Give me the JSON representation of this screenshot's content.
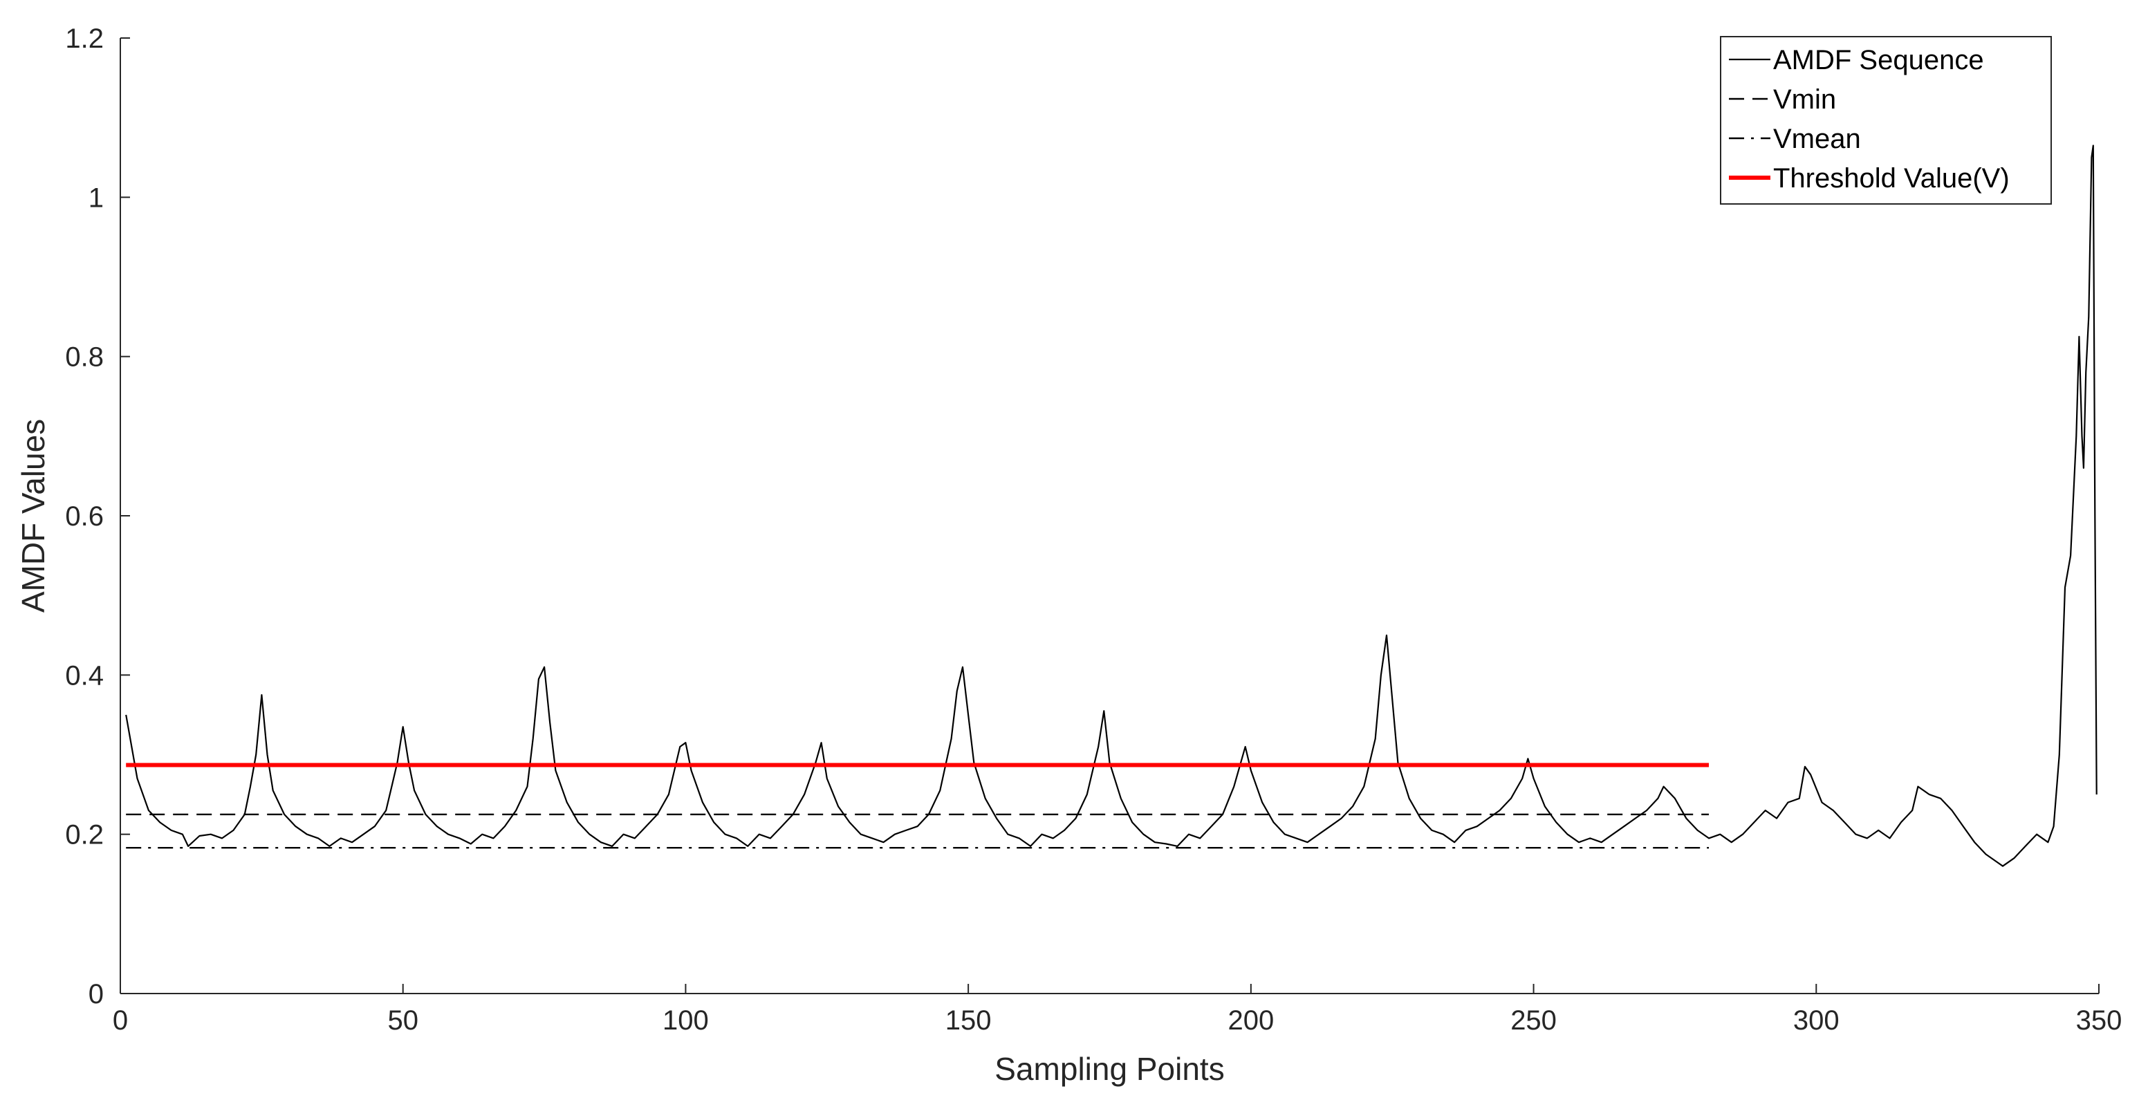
{
  "chart_data": {
    "type": "line",
    "title": "",
    "xlabel": "Sampling Points",
    "ylabel": "AMDF Values",
    "xlim": [
      0,
      350
    ],
    "ylim": [
      0,
      1.2
    ],
    "x_ticks": [
      0,
      50,
      100,
      150,
      200,
      250,
      300,
      350
    ],
    "y_ticks": [
      0,
      0.2,
      0.4,
      0.6,
      0.8,
      1,
      1.2
    ],
    "x_tick_labels": [
      "0",
      "50",
      "100",
      "150",
      "200",
      "250",
      "300",
      "350"
    ],
    "y_tick_labels": [
      "0",
      "0.2",
      "0.4",
      "0.6",
      "0.8",
      "1",
      "1.2"
    ],
    "grid": false,
    "legend_position": "top-right",
    "series": [
      {
        "name": "AMDF Sequence",
        "color": "#000000",
        "style": "solid",
        "points": [
          [
            1,
            0.35
          ],
          [
            3,
            0.27
          ],
          [
            5,
            0.23
          ],
          [
            7,
            0.215
          ],
          [
            9,
            0.205
          ],
          [
            11,
            0.2
          ],
          [
            12,
            0.185
          ],
          [
            14,
            0.198
          ],
          [
            16,
            0.2
          ],
          [
            18,
            0.195
          ],
          [
            20,
            0.205
          ],
          [
            22,
            0.225
          ],
          [
            23,
            0.26
          ],
          [
            24,
            0.3
          ],
          [
            25,
            0.375
          ],
          [
            26,
            0.3
          ],
          [
            27,
            0.255
          ],
          [
            29,
            0.225
          ],
          [
            31,
            0.21
          ],
          [
            33,
            0.2
          ],
          [
            35,
            0.195
          ],
          [
            37,
            0.185
          ],
          [
            39,
            0.195
          ],
          [
            41,
            0.19
          ],
          [
            43,
            0.2
          ],
          [
            45,
            0.21
          ],
          [
            47,
            0.23
          ],
          [
            48,
            0.26
          ],
          [
            49,
            0.29
          ],
          [
            50,
            0.335
          ],
          [
            51,
            0.29
          ],
          [
            52,
            0.255
          ],
          [
            54,
            0.225
          ],
          [
            56,
            0.21
          ],
          [
            58,
            0.2
          ],
          [
            60,
            0.195
          ],
          [
            62,
            0.188
          ],
          [
            64,
            0.2
          ],
          [
            66,
            0.195
          ],
          [
            68,
            0.21
          ],
          [
            70,
            0.23
          ],
          [
            72,
            0.26
          ],
          [
            73,
            0.32
          ],
          [
            74,
            0.395
          ],
          [
            75,
            0.41
          ],
          [
            76,
            0.34
          ],
          [
            77,
            0.28
          ],
          [
            79,
            0.24
          ],
          [
            81,
            0.215
          ],
          [
            83,
            0.2
          ],
          [
            85,
            0.19
          ],
          [
            87,
            0.185
          ],
          [
            89,
            0.2
          ],
          [
            91,
            0.195
          ],
          [
            93,
            0.21
          ],
          [
            95,
            0.225
          ],
          [
            97,
            0.25
          ],
          [
            99,
            0.31
          ],
          [
            100,
            0.315
          ],
          [
            101,
            0.28
          ],
          [
            103,
            0.24
          ],
          [
            105,
            0.215
          ],
          [
            107,
            0.2
          ],
          [
            109,
            0.195
          ],
          [
            111,
            0.185
          ],
          [
            113,
            0.2
          ],
          [
            115,
            0.195
          ],
          [
            117,
            0.21
          ],
          [
            119,
            0.225
          ],
          [
            121,
            0.25
          ],
          [
            123,
            0.29
          ],
          [
            124,
            0.315
          ],
          [
            125,
            0.27
          ],
          [
            127,
            0.235
          ],
          [
            129,
            0.215
          ],
          [
            131,
            0.2
          ],
          [
            133,
            0.195
          ],
          [
            135,
            0.19
          ],
          [
            137,
            0.2
          ],
          [
            139,
            0.205
          ],
          [
            141,
            0.21
          ],
          [
            143,
            0.225
          ],
          [
            145,
            0.255
          ],
          [
            147,
            0.32
          ],
          [
            148,
            0.38
          ],
          [
            149,
            0.41
          ],
          [
            150,
            0.35
          ],
          [
            151,
            0.29
          ],
          [
            153,
            0.245
          ],
          [
            155,
            0.22
          ],
          [
            157,
            0.2
          ],
          [
            159,
            0.195
          ],
          [
            161,
            0.185
          ],
          [
            163,
            0.2
          ],
          [
            165,
            0.195
          ],
          [
            167,
            0.205
          ],
          [
            169,
            0.22
          ],
          [
            171,
            0.25
          ],
          [
            173,
            0.31
          ],
          [
            174,
            0.355
          ],
          [
            175,
            0.29
          ],
          [
            177,
            0.245
          ],
          [
            179,
            0.215
          ],
          [
            181,
            0.2
          ],
          [
            183,
            0.19
          ],
          [
            185,
            0.188
          ],
          [
            187,
            0.185
          ],
          [
            189,
            0.2
          ],
          [
            191,
            0.195
          ],
          [
            193,
            0.21
          ],
          [
            195,
            0.225
          ],
          [
            197,
            0.26
          ],
          [
            199,
            0.31
          ],
          [
            200,
            0.28
          ],
          [
            202,
            0.24
          ],
          [
            204,
            0.215
          ],
          [
            206,
            0.2
          ],
          [
            208,
            0.195
          ],
          [
            210,
            0.19
          ],
          [
            212,
            0.2
          ],
          [
            214,
            0.21
          ],
          [
            216,
            0.22
          ],
          [
            218,
            0.235
          ],
          [
            220,
            0.26
          ],
          [
            222,
            0.32
          ],
          [
            223,
            0.4
          ],
          [
            224,
            0.45
          ],
          [
            225,
            0.37
          ],
          [
            226,
            0.29
          ],
          [
            228,
            0.245
          ],
          [
            230,
            0.22
          ],
          [
            232,
            0.205
          ],
          [
            234,
            0.2
          ],
          [
            236,
            0.19
          ],
          [
            238,
            0.205
          ],
          [
            240,
            0.21
          ],
          [
            242,
            0.22
          ],
          [
            244,
            0.23
          ],
          [
            246,
            0.245
          ],
          [
            248,
            0.27
          ],
          [
            249,
            0.295
          ],
          [
            250,
            0.27
          ],
          [
            252,
            0.235
          ],
          [
            254,
            0.215
          ],
          [
            256,
            0.2
          ],
          [
            258,
            0.19
          ],
          [
            260,
            0.195
          ],
          [
            262,
            0.19
          ],
          [
            264,
            0.2
          ],
          [
            266,
            0.21
          ],
          [
            268,
            0.22
          ],
          [
            270,
            0.23
          ],
          [
            272,
            0.245
          ],
          [
            273,
            0.26
          ],
          [
            275,
            0.245
          ],
          [
            277,
            0.22
          ],
          [
            279,
            0.205
          ],
          [
            281,
            0.195
          ],
          [
            283,
            0.2
          ],
          [
            285,
            0.19
          ],
          [
            287,
            0.2
          ],
          [
            289,
            0.215
          ],
          [
            291,
            0.23
          ],
          [
            293,
            0.22
          ],
          [
            295,
            0.24
          ],
          [
            297,
            0.245
          ],
          [
            298,
            0.285
          ],
          [
            299,
            0.275
          ],
          [
            301,
            0.24
          ],
          [
            303,
            0.23
          ],
          [
            305,
            0.215
          ],
          [
            307,
            0.2
          ],
          [
            309,
            0.195
          ],
          [
            311,
            0.205
          ],
          [
            313,
            0.195
          ],
          [
            315,
            0.215
          ],
          [
            317,
            0.23
          ],
          [
            318,
            0.26
          ],
          [
            320,
            0.25
          ],
          [
            322,
            0.245
          ],
          [
            324,
            0.23
          ],
          [
            326,
            0.21
          ],
          [
            328,
            0.19
          ],
          [
            330,
            0.175
          ],
          [
            332,
            0.165
          ],
          [
            333,
            0.16
          ],
          [
            335,
            0.17
          ],
          [
            337,
            0.185
          ],
          [
            339,
            0.2
          ],
          [
            341,
            0.19
          ],
          [
            342,
            0.21
          ],
          [
            343,
            0.3
          ],
          [
            344,
            0.51
          ],
          [
            345,
            0.55
          ],
          [
            346,
            0.7
          ],
          [
            346.5,
            0.825
          ],
          [
            347,
            0.7
          ],
          [
            347.3,
            0.66
          ],
          [
            347.7,
            0.78
          ],
          [
            348.2,
            0.85
          ],
          [
            348.7,
            1.05
          ],
          [
            349,
            1.065
          ],
          [
            349.3,
            0.6
          ],
          [
            349.6,
            0.25
          ]
        ]
      },
      {
        "name": "Vmin",
        "color": "#000000",
        "style": "dashed",
        "points": [
          [
            1,
            0.225
          ],
          [
            281,
            0.225
          ]
        ]
      },
      {
        "name": "Vmean",
        "color": "#000000",
        "style": "dashdot",
        "points": [
          [
            1,
            0.183
          ],
          [
            281,
            0.183
          ]
        ]
      },
      {
        "name": "Threshold Value(V)",
        "color": "#ff0000",
        "style": "solid-thick",
        "points": [
          [
            1,
            0.287
          ],
          [
            281,
            0.287
          ]
        ]
      }
    ]
  }
}
